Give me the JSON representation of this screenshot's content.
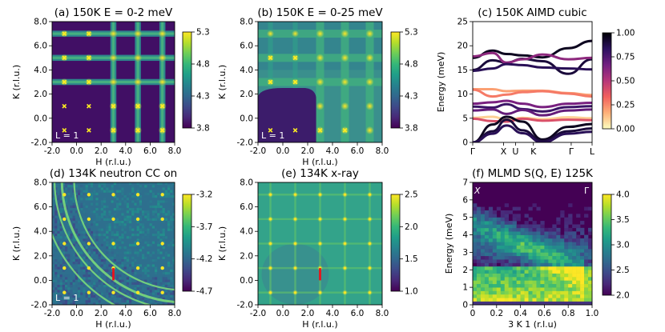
{
  "colors": {
    "viridis": [
      "#440154",
      "#482878",
      "#3e4989",
      "#31688e",
      "#26828e",
      "#1f9e89",
      "#35b779",
      "#6ece58",
      "#b5de2b",
      "#fde725"
    ],
    "magma_r": [
      "#fcfdbf",
      "#feb078",
      "#f1605d",
      "#b73779",
      "#721f81",
      "#2c115f",
      "#000004"
    ],
    "marker": "#ffee22",
    "ring": "#7fe07a",
    "redline": "#e8141c"
  },
  "chart_data": [
    {
      "id": "a",
      "type": "heatmap",
      "title": "(a) 150K E = 0-2 meV",
      "xlabel": "H (r.l.u.)",
      "ylabel": "K (r.l.u.)",
      "xlim": [
        -2,
        8
      ],
      "ylim": [
        -2,
        8
      ],
      "xticks": [
        "-2.0",
        "0.0",
        "2.0",
        "4.0",
        "6.0",
        "8.0"
      ],
      "yticks": [
        "-2.0",
        "0.0",
        "2.0",
        "4.0",
        "6.0",
        "8.0"
      ],
      "bragg_lines_h": [
        3,
        5,
        7
      ],
      "bragg_lines_k": [
        3,
        5,
        7
      ],
      "colorbar": {
        "min": 3.8,
        "max": 5.3,
        "ticks": [
          "5.3",
          "4.8",
          "4.3",
          "3.8"
        ]
      },
      "markers": [
        [
          -1,
          7
        ],
        [
          1,
          7
        ],
        [
          -1,
          5
        ],
        [
          1,
          5
        ],
        [
          -1,
          3
        ],
        [
          1,
          3
        ],
        [
          -1,
          1
        ],
        [
          1,
          1
        ],
        [
          -1,
          -1
        ],
        [
          1,
          -1
        ],
        [
          3,
          1
        ],
        [
          5,
          1
        ],
        [
          3,
          -1
        ],
        [
          5,
          -1
        ],
        [
          7,
          1
        ],
        [
          7,
          -1
        ]
      ],
      "annotation": "L = 1"
    },
    {
      "id": "b",
      "type": "heatmap",
      "title": "(b) 150K E = 0-25 meV",
      "xlabel": "H (r.l.u.)",
      "ylabel": "K (r.l.u.)",
      "xlim": [
        -2,
        8
      ],
      "ylim": [
        -2,
        8
      ],
      "xticks": [
        "-2.0",
        "0.0",
        "2.0",
        "4.0",
        "6.0",
        "8.0"
      ],
      "yticks": [
        "-2.0",
        "0.0",
        "2.0",
        "4.0",
        "6.0",
        "8.0"
      ],
      "bragg_lines_h": [
        3,
        5,
        7
      ],
      "bragg_lines_k": [
        3,
        5,
        7
      ],
      "colorbar": {
        "min": 3.8,
        "max": 5.3,
        "ticks": [
          "5.3",
          "4.8",
          "4.3",
          "3.8"
        ]
      },
      "markers": [
        [
          -1,
          5
        ],
        [
          1,
          5
        ],
        [
          -1,
          3
        ],
        [
          1,
          3
        ],
        [
          -1,
          -1
        ],
        [
          1,
          -1
        ],
        [
          3,
          -1
        ],
        [
          5,
          -1
        ]
      ],
      "annotation": "L = 1"
    },
    {
      "id": "c",
      "type": "line",
      "title": "(c) 150K AIMD cubic",
      "ylabel": "Energy (meV)",
      "ylim": [
        0,
        25
      ],
      "yticks": [
        "0",
        "5",
        "10",
        "15",
        "20",
        "25"
      ],
      "xtick_labels": [
        "Γ",
        "X",
        "U",
        "K",
        "Γ",
        "L"
      ],
      "colorbar": {
        "min": 0,
        "max": 1,
        "ticks": [
          "1.00",
          "0.75",
          "0.50",
          "0.25",
          "0.00"
        ]
      },
      "series": [
        {
          "name": "band-1",
          "weight": 0.9,
          "values": [
            15.0,
            17.0,
            16.5,
            17.3,
            16.8,
            14.2,
            17.2
          ]
        },
        {
          "name": "band-2",
          "weight": 0.95,
          "values": [
            17.5,
            19.0,
            18.3,
            18.0,
            17.6,
            19.5,
            21.0
          ]
        },
        {
          "name": "band-3",
          "weight": 0.6,
          "values": [
            17.8,
            18.5,
            16.5,
            17.2,
            18.2,
            17.2,
            17.5
          ]
        },
        {
          "name": "band-4",
          "weight": 0.85,
          "values": [
            14.8,
            15.3,
            16.2,
            16.0,
            15.5,
            15.3,
            15.1
          ]
        },
        {
          "name": "band-5",
          "weight": 0.2,
          "values": [
            11.0,
            11.0,
            10.6,
            10.7,
            10.7,
            10.2,
            9.8
          ]
        },
        {
          "name": "band-6",
          "weight": 0.28,
          "values": [
            10.9,
            9.5,
            9.9,
            10.4,
            10.6,
            10.1,
            9.5
          ]
        },
        {
          "name": "band-7",
          "weight": 0.65,
          "values": [
            8.0,
            8.3,
            8.6,
            8.0,
            7.3,
            8.0,
            8.2
          ]
        },
        {
          "name": "band-8",
          "weight": 0.8,
          "values": [
            7.4,
            7.2,
            7.9,
            6.9,
            6.4,
            7.3,
            7.5
          ]
        },
        {
          "name": "band-9",
          "weight": 0.7,
          "values": [
            6.6,
            6.8,
            5.9,
            6.7,
            5.6,
            6.6,
            6.8
          ]
        },
        {
          "name": "band-10",
          "weight": 0.1,
          "values": [
            5.1,
            5.3,
            4.7,
            5.1,
            4.8,
            5.2,
            5.0
          ]
        },
        {
          "name": "band-11",
          "weight": 0.4,
          "values": [
            4.9,
            4.4,
            4.3,
            4.9,
            4.5,
            4.7,
            4.6
          ]
        },
        {
          "name": "band-12",
          "weight": 0.95,
          "values": [
            0.0,
            3.7,
            5.3,
            4.3,
            0.6,
            3.2,
            3.8
          ]
        },
        {
          "name": "band-13",
          "weight": 0.9,
          "values": [
            0.0,
            2.3,
            4.7,
            2.5,
            0.3,
            2.3,
            2.9
          ]
        },
        {
          "name": "band-14",
          "weight": 0.85,
          "values": [
            0.0,
            1.8,
            3.5,
            1.9,
            0.0,
            1.8,
            2.2
          ]
        }
      ]
    },
    {
      "id": "d",
      "type": "heatmap",
      "title": "(d) 134K neutron CC on",
      "xlabel": "H (r.l.u.)",
      "ylabel": "K (r.l.u.)",
      "xlim": [
        -2,
        8
      ],
      "ylim": [
        -2,
        8
      ],
      "xticks": [
        "-2.0",
        "0.0",
        "2.0",
        "4.0",
        "6.0",
        "8.0"
      ],
      "yticks": [
        "-2.0",
        "0.0",
        "2.0",
        "4.0",
        "6.0",
        "8.0"
      ],
      "colorbar": {
        "min": -4.7,
        "max": -3.2,
        "ticks": [
          "-3.2",
          "-3.7",
          "-4.2",
          "-4.7"
        ]
      },
      "powder_rings_radius": [
        9.0,
        10.0,
        10.6,
        11.7
      ],
      "redline": {
        "x": 3,
        "y_from": 0,
        "y_to": 1
      },
      "annotation": "L = 1"
    },
    {
      "id": "e",
      "type": "heatmap",
      "title": "(e) 134K x-ray",
      "xlabel": "H (r.l.u.)",
      "ylabel": "K (r.l.u.)",
      "xlim": [
        -2,
        8
      ],
      "ylim": [
        -2,
        8
      ],
      "xticks": [
        "-2.0",
        "0.0",
        "2.0",
        "4.0",
        "6.0",
        "8.0"
      ],
      "yticks": [
        "-2.0",
        "0.0",
        "2.0",
        "4.0",
        "6.0",
        "8.0"
      ],
      "colorbar": {
        "min": 1.0,
        "max": 2.5,
        "ticks": [
          "2.5",
          "2.0",
          "1.5",
          "1.0"
        ]
      },
      "redline": {
        "x": 3,
        "y_from": 0,
        "y_to": 1
      }
    },
    {
      "id": "f",
      "type": "heatmap",
      "title": "(f) MLMD S(Q, E) 125K",
      "xlabel": "3 K 1 (r.l.u)",
      "ylabel": "Energy (meV)",
      "xlim": [
        0,
        1
      ],
      "ylim": [
        0,
        7
      ],
      "xticks": [
        "0",
        "0.2",
        "0.4",
        "0.6",
        "0.8",
        "1.0"
      ],
      "yticks": [
        "0",
        "1",
        "2",
        "3",
        "4",
        "5",
        "6",
        "7"
      ],
      "colorbar": {
        "min": 2.0,
        "max": 4.0,
        "ticks": [
          "4.0",
          "3.5",
          "3.0",
          "2.5",
          "2.0"
        ]
      },
      "corner_labels": [
        "X",
        "Γ"
      ]
    }
  ]
}
